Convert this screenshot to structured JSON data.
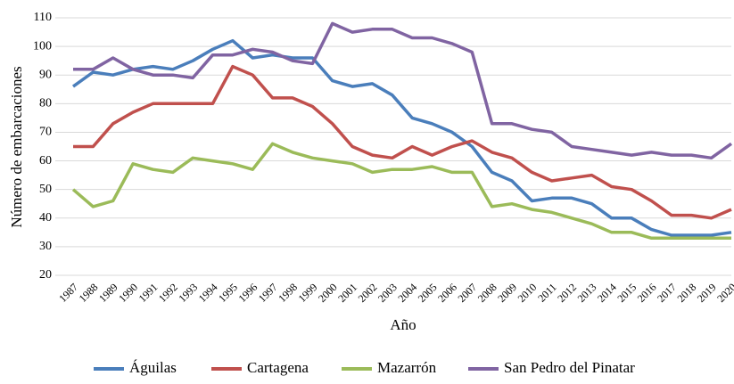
{
  "chart_data": {
    "type": "line",
    "x_label": "Año",
    "y_label": "Número de embarcaciones",
    "categories": [
      "1987",
      "1988",
      "1989",
      "1990",
      "1991",
      "1992",
      "1993",
      "1994",
      "1995",
      "1996",
      "1997",
      "1998",
      "1999",
      "2000",
      "2001",
      "2002",
      "2003",
      "2004",
      "2005",
      "2006",
      "2007",
      "2008",
      "2009",
      "2010",
      "2011",
      "2012",
      "2013",
      "2014",
      "2015",
      "2016",
      "2017",
      "2018",
      "2019",
      "2020"
    ],
    "series": [
      {
        "name": "Águilas",
        "color": "#4a7ebb",
        "values": [
          86,
          91,
          90,
          92,
          93,
          92,
          95,
          99,
          102,
          96,
          97,
          96,
          96,
          88,
          86,
          87,
          83,
          75,
          73,
          70,
          65,
          56,
          53,
          46,
          47,
          47,
          45,
          40,
          40,
          36,
          34,
          34,
          34,
          35
        ]
      },
      {
        "name": "Cartagena",
        "color": "#c0504d",
        "values": [
          65,
          65,
          73,
          77,
          80,
          80,
          80,
          80,
          93,
          90,
          82,
          82,
          79,
          73,
          65,
          62,
          61,
          65,
          62,
          65,
          67,
          63,
          61,
          56,
          53,
          54,
          55,
          51,
          50,
          46,
          41,
          41,
          40,
          43
        ]
      },
      {
        "name": "Mazarrón",
        "color": "#9bbb59",
        "values": [
          50,
          44,
          46,
          59,
          57,
          56,
          61,
          60,
          59,
          57,
          66,
          63,
          61,
          60,
          59,
          56,
          57,
          57,
          58,
          56,
          56,
          44,
          45,
          43,
          42,
          40,
          38,
          35,
          35,
          33,
          33,
          33,
          33,
          33
        ]
      },
      {
        "name": "San Pedro del Pinatar",
        "color": "#8064a2",
        "values": [
          92,
          92,
          96,
          92,
          90,
          90,
          89,
          97,
          97,
          99,
          98,
          95,
          94,
          108,
          105,
          106,
          106,
          103,
          103,
          101,
          98,
          73,
          73,
          71,
          70,
          65,
          64,
          63,
          62,
          63,
          62,
          62,
          61,
          66
        ]
      }
    ],
    "ylim": [
      20,
      110
    ],
    "yticks": [
      20,
      30,
      40,
      50,
      60,
      70,
      80,
      90,
      100,
      110
    ],
    "grid": true,
    "legend": "bottom"
  }
}
